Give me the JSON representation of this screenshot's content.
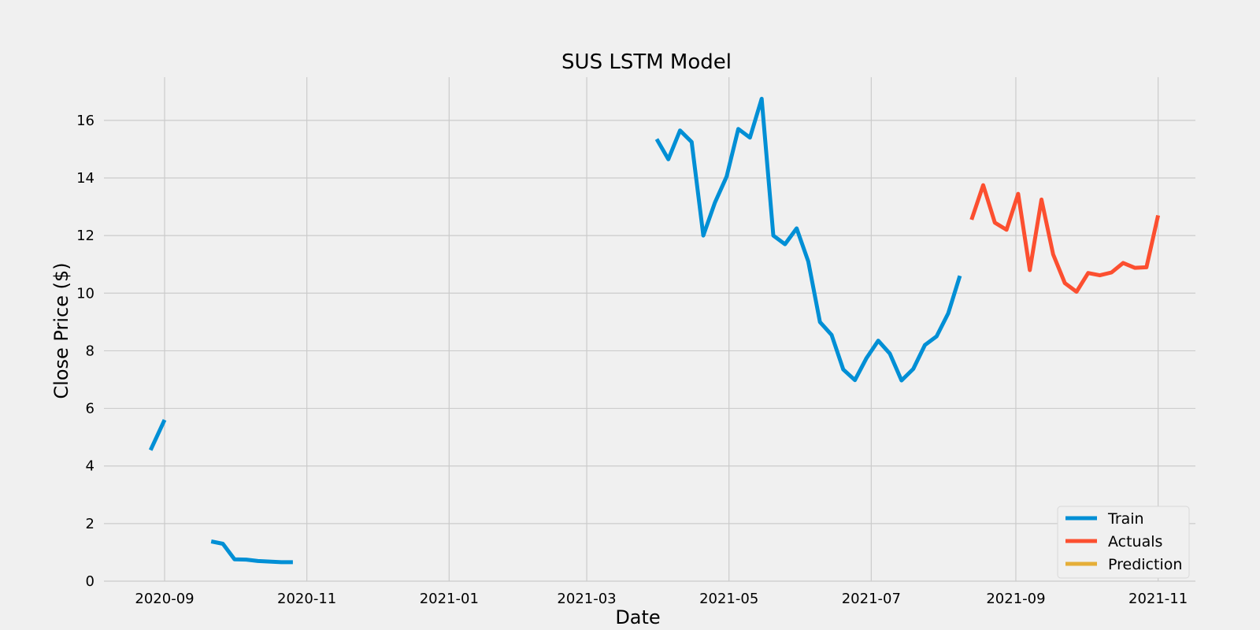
{
  "chart_data": {
    "type": "line",
    "title": "SUS LSTM Model",
    "xlabel": "Date",
    "ylabel": "Close Price ($)",
    "ylim": [
      0,
      17.5
    ],
    "xlim": [
      "2020-08-06",
      "2021-11-17"
    ],
    "grid": true,
    "legend_position": "lower-right",
    "x_ticks": [
      "2020-09",
      "2020-11",
      "2021-01",
      "2021-03",
      "2021-05",
      "2021-07",
      "2021-09",
      "2021-11"
    ],
    "x_tick_dates": [
      "2020-09-01",
      "2020-11-01",
      "2021-01-01",
      "2021-03-01",
      "2021-05-01",
      "2021-07-01",
      "2021-09-01",
      "2021-11-01"
    ],
    "y_ticks": [
      0,
      2,
      4,
      6,
      8,
      10,
      12,
      14,
      16
    ],
    "series": [
      {
        "name": "Train",
        "color": "#008fd5",
        "segments": [
          {
            "x": [
              "2020-08-26",
              "2020-09-01"
            ],
            "y": [
              4.55,
              5.6
            ]
          },
          {
            "x": [
              "2020-09-21",
              "2020-09-26",
              "2020-10-01",
              "2020-10-06",
              "2020-10-11",
              "2020-10-16",
              "2020-10-21",
              "2020-10-26"
            ],
            "y": [
              1.38,
              1.3,
              0.76,
              0.75,
              0.7,
              0.68,
              0.66,
              0.66
            ]
          },
          {
            "x": [
              "2021-03-31",
              "2021-04-05",
              "2021-04-10",
              "2021-04-15",
              "2021-04-20",
              "2021-04-25",
              "2021-04-30",
              "2021-05-05",
              "2021-05-10",
              "2021-05-15",
              "2021-05-20",
              "2021-05-25",
              "2021-05-30",
              "2021-06-04",
              "2021-06-09",
              "2021-06-14",
              "2021-06-19",
              "2021-06-24",
              "2021-06-29",
              "2021-07-04",
              "2021-07-09",
              "2021-07-14",
              "2021-07-19",
              "2021-07-24",
              "2021-07-29",
              "2021-08-03",
              "2021-08-08"
            ],
            "y": [
              15.35,
              14.65,
              15.65,
              15.25,
              12.0,
              13.15,
              14.05,
              15.7,
              15.4,
              16.75,
              12.0,
              11.7,
              12.25,
              11.1,
              9.0,
              8.55,
              7.35,
              6.98,
              7.75,
              8.35,
              7.9,
              6.97,
              7.37,
              8.2,
              8.5,
              9.3,
              10.6
            ]
          }
        ]
      },
      {
        "name": "Actuals",
        "color": "#fc4f30",
        "segments": [
          {
            "x": [
              "2021-08-13",
              "2021-08-18",
              "2021-08-23",
              "2021-08-28",
              "2021-09-02",
              "2021-09-07",
              "2021-09-12",
              "2021-09-17",
              "2021-09-22",
              "2021-09-27",
              "2021-10-02",
              "2021-10-07",
              "2021-10-12",
              "2021-10-17",
              "2021-10-22",
              "2021-10-27",
              "2021-11-01"
            ],
            "y": [
              12.55,
              13.75,
              12.45,
              12.2,
              13.45,
              10.8,
              13.25,
              11.35,
              10.35,
              10.05,
              10.7,
              10.62,
              10.72,
              11.05,
              10.88,
              10.9,
              12.7
            ]
          }
        ]
      },
      {
        "name": "Prediction",
        "color": "#e5ae38",
        "segments": []
      }
    ]
  }
}
